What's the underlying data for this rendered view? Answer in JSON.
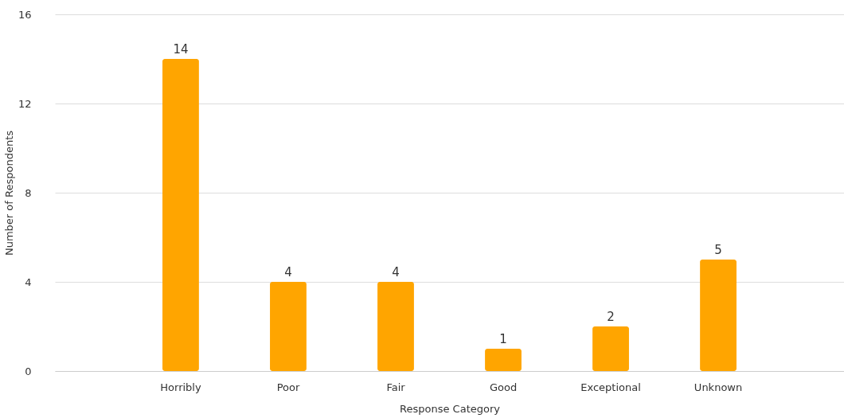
{
  "chart_data": {
    "type": "bar",
    "xlabel": "Response Category",
    "ylabel": "Number of Respondents",
    "categories": [
      "Horribly",
      "Poor",
      "Fair",
      "Good",
      "Exceptional",
      "Unknown"
    ],
    "values": [
      14,
      4,
      4,
      1,
      2,
      5
    ],
    "color": "#ffa500",
    "ylim": [
      0,
      16
    ],
    "yticks": [
      0,
      4,
      8,
      12,
      16
    ],
    "grid": "y",
    "data_labels": true
  }
}
